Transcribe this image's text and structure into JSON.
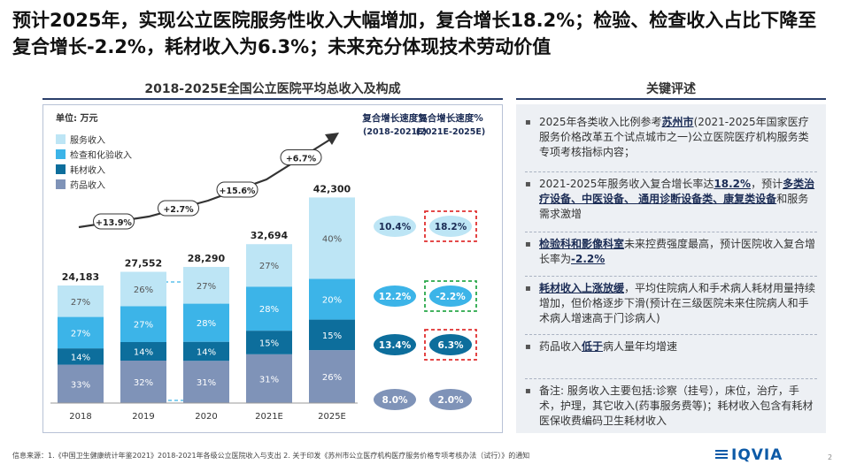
{
  "title": "预计2025年，实现公立医院服务性收入大幅增加，复合增长18.2%；检验、检查收入占比下降至复合增长-2.2%，耗材收入为6.3%；未来充分体现技术劳动价值",
  "left_section_title": "2018-2025E全国公立医院平均总收入及构成",
  "right_section_title": "关键评述",
  "chart_data": {
    "type": "bar",
    "unit_label": "单位: 万元",
    "categories": [
      "2018",
      "2019",
      "2020",
      "2021E",
      "2025E"
    ],
    "totals": [
      24183,
      27552,
      28290,
      32694,
      42300
    ],
    "total_labels": [
      "24,183",
      "27,552",
      "28,290",
      "32,694",
      "42,300"
    ],
    "series": [
      {
        "name": "药品收入",
        "color": "#7f93b8",
        "values": [
          33,
          32,
          31,
          31,
          26
        ]
      },
      {
        "name": "耗材收入",
        "color": "#0d6e9c",
        "values": [
          14,
          14,
          14,
          15,
          15
        ]
      },
      {
        "name": "检查和化验收入",
        "color": "#3cb4e8",
        "values": [
          27,
          27,
          28,
          28,
          20
        ]
      },
      {
        "name": "服务收入",
        "color": "#bde5f5",
        "values": [
          27,
          26,
          27,
          27,
          40
        ]
      }
    ],
    "legend_order": [
      "服务收入",
      "检查和化验收入",
      "耗材收入",
      "药品收入"
    ],
    "growth_arrows": [
      "+13.9%",
      "+2.7%",
      "+15.6%",
      "+6.7%"
    ],
    "cagr_headers": [
      {
        "title": "复合增长速度%",
        "period": "(2018-2021E)"
      },
      {
        "title": "复合增长速度%",
        "period": "(2021E-2025E)"
      }
    ],
    "cagr_rows": [
      {
        "series": "服务收入",
        "a": "10.4%",
        "b": "18.2%",
        "a_color": "#bde5f5",
        "b_color": "#bde5f5",
        "highlight": "#e03030"
      },
      {
        "series": "检查和化验收入",
        "a": "12.2%",
        "b": "-2.2%",
        "a_color": "#3cb4e8",
        "b_color": "#3cb4e8",
        "highlight": "#2aa84a"
      },
      {
        "series": "耗材收入",
        "a": "13.4%",
        "b": "6.3%",
        "a_color": "#0d6e9c",
        "b_color": "#0d6e9c",
        "highlight": "#e03030"
      },
      {
        "series": "药品收入",
        "a": "8.0%",
        "b": "2.0%",
        "a_color": "#7f93b8",
        "b_color": "#7f93b8",
        "highlight": ""
      }
    ],
    "ylim": [
      0,
      45000
    ]
  },
  "comments": [
    {
      "parts": [
        {
          "t": "2025年各类收入比例参考"
        },
        {
          "t": "苏州市",
          "b": true
        },
        {
          "t": "(2021-2025年国家医疗服务价格改革五个试点城市之一)公立医院医疗机构服务类专项考核指标内容；"
        }
      ]
    },
    {
      "parts": [
        {
          "t": "2021-2025年服务收入复合增长率达"
        },
        {
          "t": "18.2%",
          "b": true
        },
        {
          "t": "，预计"
        },
        {
          "t": "多类治疗设备、中医设备、 通用诊断设备类、康复类设备",
          "b": true
        },
        {
          "t": "和服务需求激增"
        }
      ]
    },
    {
      "parts": [
        {
          "t": "检验科和影像科室",
          "b": true
        },
        {
          "t": "未来控费强度最高，预计医院收入复合增长率为"
        },
        {
          "t": "-2.2%",
          "b": true
        }
      ]
    },
    {
      "parts": [
        {
          "t": "耗材收入上涨放缓",
          "b": true
        },
        {
          "t": "，平均住院病人和手术病人耗材用量持续增加，但价格逐步下滑(预计在三级医院未来住院病人和手术病人增速高于门诊病人)"
        }
      ]
    },
    {
      "parts": [
        {
          "t": "药品收入"
        },
        {
          "t": "低于",
          "b": true
        },
        {
          "t": "病人量年均增速"
        }
      ]
    },
    {
      "parts": [
        {
          "t": "备注: 服务收入主要包括:诊察（挂号），床位，治疗，手术，护理，其它收入(药事服务费等)；耗材收入包含有耗材医保收费编码卫生耗材收入"
        }
      ]
    }
  ],
  "footer": "信息来源：1.《中国卫生健康统计年鉴2021》2018-2021年各级公立医院收入与支出   2. 关于印发《苏州市公立医疗机构医疗服务价格专项考核办法（试行）》的通知",
  "logo_text": "IQVIA",
  "page_number": "2"
}
